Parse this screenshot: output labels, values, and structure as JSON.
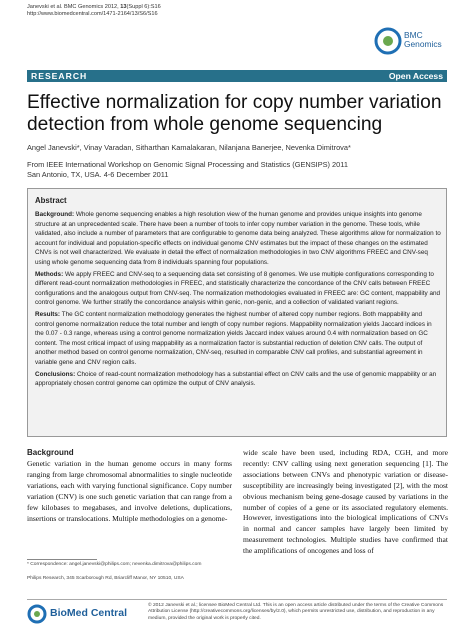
{
  "header": {
    "citation_prefix": "Janevski et al. BMC Genomics 2012, ",
    "volume": "13",
    "citation_suffix": "(Suppl 6):S16",
    "url": "http://www.biomedcentral.com/1471-2164/13/S6/S16",
    "journal_logo": "BMC Genomics"
  },
  "article_type": "RESEARCH",
  "access": "Open Access",
  "title": "Effective normalization for copy number variation detection from whole genome sequencing",
  "authors": "Angel Janevski*, Vinay Varadan, Sitharthan Kamalakaran, Nilanjana Banerjee, Nevenka Dimitrova*",
  "source": [
    "From IEEE International Workshop on Genomic Signal Processing and Statistics (GENSIPS) 2011",
    "San Antonio, TX, USA. 4-6 December 2011"
  ],
  "abstract": {
    "heading": "Abstract",
    "sections": [
      {
        "label": "Background:",
        "text": "Whole genome sequencing enables a high resolution view of the human genome and provides unique insights into genome structure at an unprecedented scale. There have been a number of tools to infer copy number variation in the genome. These tools, while validated, also include a number of parameters that are configurable to genome data being analyzed. These algorithms allow for normalization to account for individual and population-specific effects on individual genome CNV estimates but the impact of these changes on the estimated CNVs is not well characterized. We evaluate in detail the effect of normalization methodologies in two CNV algorithms FREEC and CNV-seq using whole genome sequencing data from 8 individuals spanning four populations."
      },
      {
        "label": "Methods:",
        "text": "We apply FREEC and CNV-seq to a sequencing data set consisting of 8 genomes. We use multiple configurations corresponding to different read-count normalization methodologies in FREEC, and statistically characterize the concordance of the CNV calls between FREEC configurations and the analogous output from CNV-seq. The normalization methodologies evaluated in FREEC are: GC content, mappability and control genome. We further stratify the concordance analysis within genic, non-genic, and a collection of validated variant regions."
      },
      {
        "label": "Results:",
        "text": "The GC content normalization methodology generates the highest number of altered copy number regions. Both mappability and control genome normalization reduce the total number and length of copy number regions. Mappability normalization yields Jaccard indices in the 0.07 - 0.3 range, whereas using a control genome normalization yields Jaccard index values around 0.4 with normalization based on GC content. The most critical impact of using mappability as a normalization factor is substantial reduction of deletion CNV calls. The output of another method based on control genome normalization, CNV-seq, resulted in comparable CNV call profiles, and substantial agreement in variable gene and CNV region calls."
      },
      {
        "label": "Conclusions:",
        "text": "Choice of read-count normalization methodology has a substantial effect on CNV calls and the use of genomic mappability or an appropriately chosen control genome can optimize the output of CNV analysis."
      }
    ]
  },
  "body": {
    "heading": "Background",
    "left": "Genetic variation in the human genome occurs in many forms ranging from large chromosomal abnormalities to single nucleotide variations, each with varying functional significance. Copy number variation (CNV) is one such genetic variation that can range from a few kilobases to megabases, and involve deletions, duplications, insertions or translocations. Multiple methodologies on a genome-",
    "right": "wide scale have been used, including RDA, CGH, and more recently: CNV calling using next generation sequencing [1]. The associations between CNVs and phenotypic variation or disease-susceptibility are increasingly being investigated [2], with the most obvious mechanism being gene-dosage caused by variations in the number of copies of a gene or its associated regulatory elements. However, investigations into the biological implications of CNVs in normal and cancer samples have largely been limited by measurement technologies. Multiple studies have confirmed that the amplifications of oncogenes and loss of"
  },
  "footnote": {
    "correspondence": "* Correspondence: angel.janevski@philips.com; nevenka.dimitrova@philips.com",
    "affiliation": "Philips Research, 345 Scarborough Rd, Briarcliff Manor, NY 10510, USA"
  },
  "footer": {
    "publisher_logo": "BioMed Central",
    "license": "© 2012 Janevski et al.; licensee BioMed Central Ltd. This is an open access article distributed under the terms of the Creative Commons Attribution License (http://creativecommons.org/licenses/by/2.0), which permits unrestricted use, distribution, and reproduction in any medium, provided the original work is properly cited."
  }
}
